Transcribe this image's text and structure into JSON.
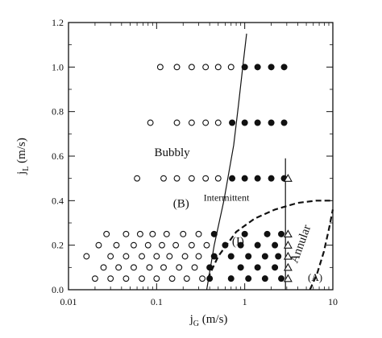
{
  "chart_data": {
    "type": "scatter",
    "title": "",
    "xlabel": "j",
    "xlabel_sub": "G",
    "xlabel_unit": "(m/s)",
    "ylabel": "j",
    "ylabel_sub": "L",
    "ylabel_unit": "(m/s)",
    "x_scale": "log",
    "xlim": [
      0.01,
      10
    ],
    "ylim": [
      0.0,
      1.2
    ],
    "x_ticks": [
      0.01,
      0.1,
      1,
      10
    ],
    "x_tick_labels": [
      "0.01",
      "0.1",
      "1",
      "10"
    ],
    "y_ticks": [
      0.0,
      0.2,
      0.4,
      0.6,
      0.8,
      1.0,
      1.2
    ],
    "y_tick_labels": [
      "0.0",
      "0.2",
      "0.4",
      "0.6",
      "0.8",
      "1.0",
      "1.2"
    ],
    "grid": false,
    "legend": "none",
    "series": [
      {
        "marker": "open-circle",
        "points": [
          [
            0.11,
            1.0
          ],
          [
            0.17,
            1.0
          ],
          [
            0.25,
            1.0
          ],
          [
            0.36,
            1.0
          ],
          [
            0.5,
            1.0
          ],
          [
            0.7,
            1.0
          ],
          [
            0.085,
            0.75
          ],
          [
            0.17,
            0.75
          ],
          [
            0.25,
            0.75
          ],
          [
            0.36,
            0.75
          ],
          [
            0.5,
            0.75
          ],
          [
            0.06,
            0.5
          ],
          [
            0.12,
            0.5
          ],
          [
            0.17,
            0.5
          ],
          [
            0.25,
            0.5
          ],
          [
            0.36,
            0.5
          ],
          [
            0.5,
            0.5
          ],
          [
            0.027,
            0.25
          ],
          [
            0.045,
            0.25
          ],
          [
            0.065,
            0.25
          ],
          [
            0.09,
            0.25
          ],
          [
            0.13,
            0.25
          ],
          [
            0.2,
            0.25
          ],
          [
            0.3,
            0.25
          ],
          [
            0.016,
            0.15
          ],
          [
            0.022,
            0.2
          ],
          [
            0.035,
            0.2
          ],
          [
            0.055,
            0.2
          ],
          [
            0.08,
            0.2
          ],
          [
            0.115,
            0.2
          ],
          [
            0.165,
            0.2
          ],
          [
            0.25,
            0.2
          ],
          [
            0.37,
            0.2
          ],
          [
            0.03,
            0.15
          ],
          [
            0.045,
            0.15
          ],
          [
            0.068,
            0.15
          ],
          [
            0.1,
            0.15
          ],
          [
            0.14,
            0.15
          ],
          [
            0.21,
            0.15
          ],
          [
            0.3,
            0.15
          ],
          [
            0.025,
            0.1
          ],
          [
            0.037,
            0.1
          ],
          [
            0.055,
            0.1
          ],
          [
            0.083,
            0.1
          ],
          [
            0.12,
            0.1
          ],
          [
            0.18,
            0.1
          ],
          [
            0.27,
            0.1
          ],
          [
            0.02,
            0.05
          ],
          [
            0.03,
            0.05
          ],
          [
            0.045,
            0.05
          ],
          [
            0.068,
            0.05
          ],
          [
            0.1,
            0.05
          ],
          [
            0.15,
            0.05
          ],
          [
            0.22,
            0.05
          ],
          [
            0.33,
            0.05
          ]
        ]
      },
      {
        "marker": "filled-circle",
        "points": [
          [
            1.0,
            1.0
          ],
          [
            1.4,
            1.0
          ],
          [
            2.0,
            1.0
          ],
          [
            2.8,
            1.0
          ],
          [
            0.72,
            0.75
          ],
          [
            1.0,
            0.75
          ],
          [
            1.4,
            0.75
          ],
          [
            2.0,
            0.75
          ],
          [
            2.8,
            0.75
          ],
          [
            0.72,
            0.5
          ],
          [
            1.0,
            0.5
          ],
          [
            1.4,
            0.5
          ],
          [
            2.0,
            0.5
          ],
          [
            2.8,
            0.5
          ],
          [
            0.45,
            0.25
          ],
          [
            1.0,
            0.25
          ],
          [
            1.8,
            0.25
          ],
          [
            2.6,
            0.25
          ],
          [
            0.6,
            0.2
          ],
          [
            0.9,
            0.2
          ],
          [
            1.4,
            0.2
          ],
          [
            2.2,
            0.2
          ],
          [
            0.45,
            0.15
          ],
          [
            0.7,
            0.15
          ],
          [
            1.1,
            0.15
          ],
          [
            1.7,
            0.15
          ],
          [
            2.4,
            0.15
          ],
          [
            0.4,
            0.1
          ],
          [
            0.9,
            0.1
          ],
          [
            1.4,
            0.1
          ],
          [
            2.2,
            0.1
          ],
          [
            0.4,
            0.05
          ],
          [
            0.7,
            0.05
          ],
          [
            1.1,
            0.05
          ],
          [
            1.7,
            0.05
          ],
          [
            2.6,
            0.05
          ]
        ]
      },
      {
        "marker": "open-triangle",
        "points": [
          [
            3.1,
            0.5
          ],
          [
            3.1,
            0.25
          ],
          [
            3.1,
            0.2
          ],
          [
            3.1,
            0.15
          ],
          [
            3.1,
            0.1
          ],
          [
            3.1,
            0.05
          ]
        ]
      }
    ],
    "boundaries": [
      {
        "style": "solid",
        "points": [
          [
            0.37,
            0.0
          ],
          [
            0.45,
            0.2
          ],
          [
            0.58,
            0.4
          ],
          [
            0.75,
            0.65
          ],
          [
            0.85,
            0.83
          ],
          [
            0.95,
            1.0
          ],
          [
            1.05,
            1.15
          ]
        ]
      },
      {
        "style": "solid",
        "points": [
          [
            2.9,
            0.0
          ],
          [
            2.9,
            0.59
          ]
        ]
      },
      {
        "style": "dashed",
        "points": [
          [
            0.38,
            0.05
          ],
          [
            0.5,
            0.15
          ],
          [
            0.8,
            0.26
          ],
          [
            1.3,
            0.32
          ],
          [
            2.2,
            0.36
          ],
          [
            4.0,
            0.39
          ],
          [
            6.5,
            0.4
          ],
          [
            10.0,
            0.4
          ]
        ]
      },
      {
        "style": "dashed",
        "points": [
          [
            5.5,
            0.0
          ],
          [
            6.6,
            0.07
          ],
          [
            7.9,
            0.17
          ],
          [
            9.0,
            0.27
          ],
          [
            10.0,
            0.36
          ]
        ]
      }
    ],
    "annotations": [
      {
        "text": "Bubbly",
        "x": 0.15,
        "y": 0.6,
        "size": "large"
      },
      {
        "text": "(B)",
        "x": 0.19,
        "y": 0.37,
        "size": "large"
      },
      {
        "text": "Intermittent",
        "x": 0.62,
        "y": 0.4,
        "size": "small"
      },
      {
        "text": "(I)",
        "x": 0.84,
        "y": 0.2,
        "size": "large"
      },
      {
        "text": "Annular",
        "x": 4.7,
        "y": 0.2,
        "size": "large",
        "rotate": -70
      },
      {
        "text": "(A)",
        "x": 6.3,
        "y": 0.04,
        "size": "medium"
      }
    ]
  }
}
